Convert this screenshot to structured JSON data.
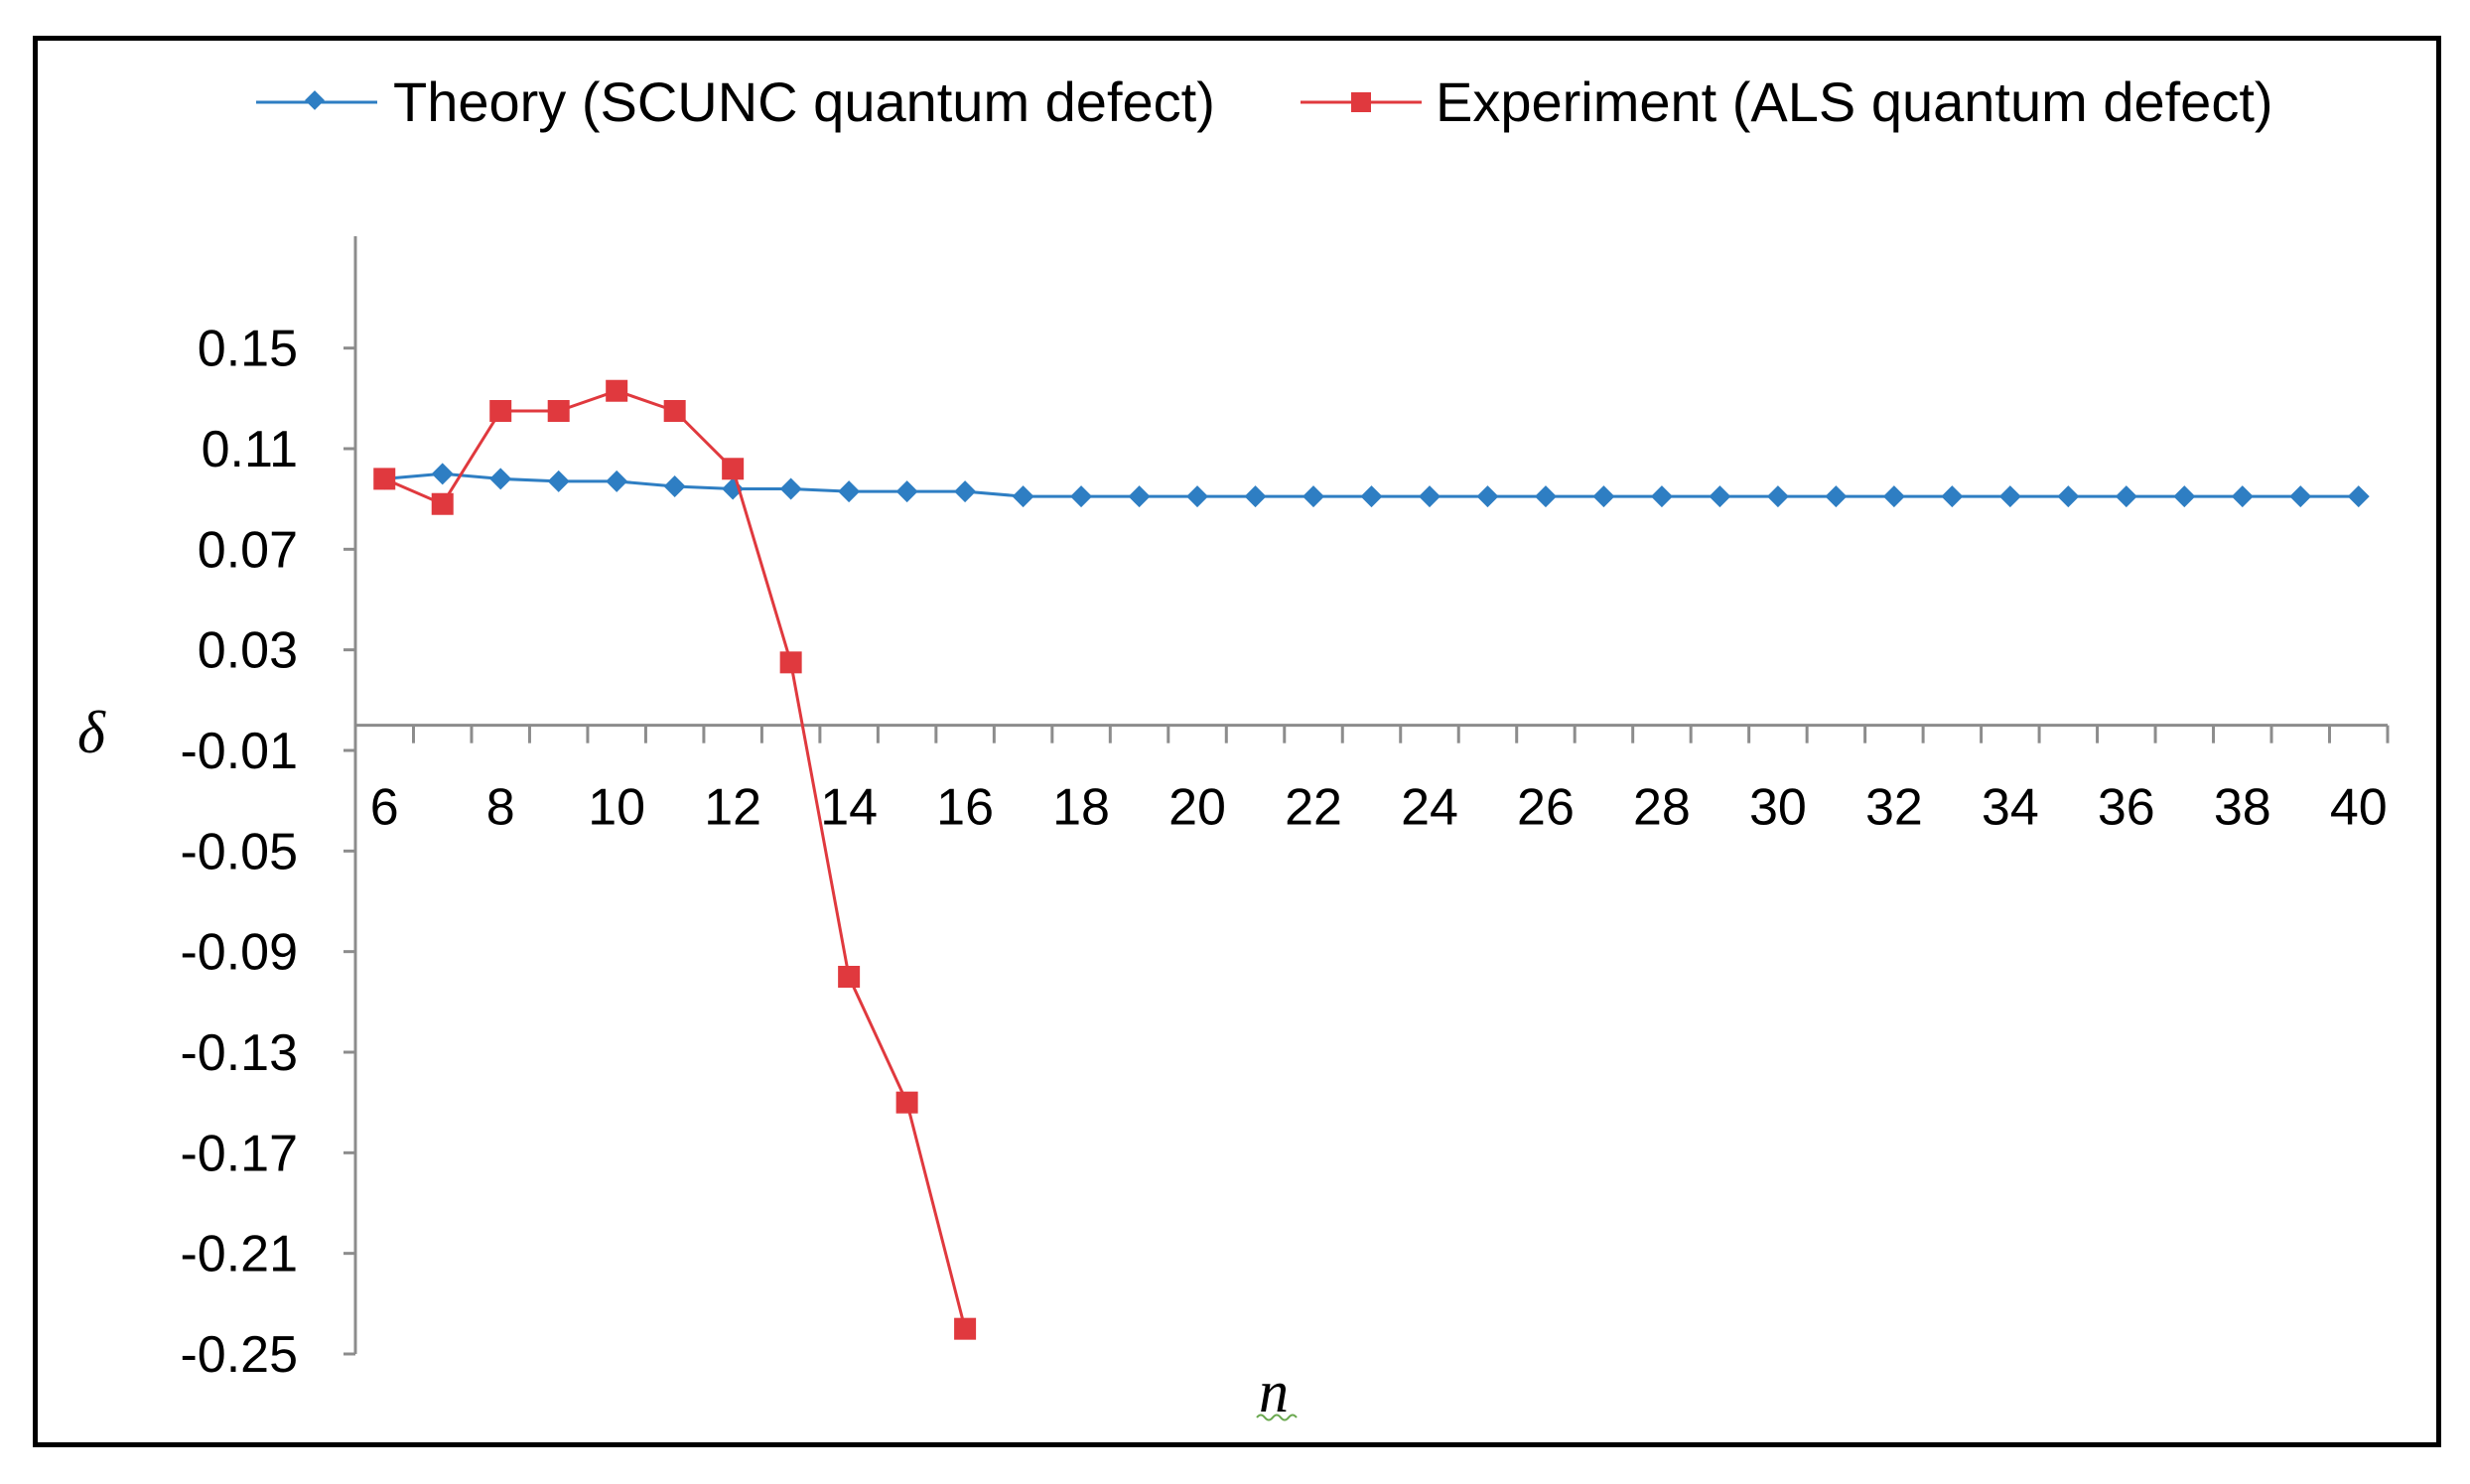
{
  "chart_data": {
    "type": "line",
    "title": "",
    "xlabel": "n",
    "ylabel": "δ",
    "x": [
      6,
      7,
      8,
      9,
      10,
      11,
      12,
      13,
      14,
      15,
      16,
      17,
      18,
      19,
      20,
      21,
      22,
      23,
      24,
      25,
      26,
      27,
      28,
      29,
      30,
      31,
      32,
      33,
      34,
      35,
      36,
      37,
      38,
      39,
      40
    ],
    "xticks": [
      6,
      8,
      10,
      12,
      14,
      16,
      18,
      20,
      22,
      24,
      26,
      28,
      30,
      32,
      34,
      36,
      38,
      40
    ],
    "xlim": [
      5.5,
      40.5
    ],
    "ylim": [
      -0.25,
      0.185
    ],
    "yticks": [
      0.15,
      0.11,
      0.07,
      0.03,
      -0.01,
      -0.05,
      -0.09,
      -0.13,
      -0.17,
      -0.21,
      -0.25
    ],
    "ytick_labels": [
      "0.15",
      "0.11",
      "0.07",
      "0.03",
      "-0.01",
      "-0.05",
      "-0.09",
      "-0.13",
      "-0.17",
      "-0.21",
      "-0.25"
    ],
    "x_axis_at": 0,
    "legend_position": "top",
    "grid": false,
    "series": [
      {
        "name": "Theory (SCUNC quantum defect)",
        "color": "#2e7ec3",
        "marker": "diamond",
        "x": [
          6,
          7,
          8,
          9,
          10,
          11,
          12,
          13,
          14,
          15,
          16,
          17,
          18,
          19,
          20,
          21,
          22,
          23,
          24,
          25,
          26,
          27,
          28,
          29,
          30,
          31,
          32,
          33,
          34,
          35,
          36,
          37,
          38,
          39,
          40
        ],
        "values": [
          0.098,
          0.1,
          0.098,
          0.097,
          0.097,
          0.095,
          0.094,
          0.094,
          0.093,
          0.093,
          0.093,
          0.091,
          0.091,
          0.091,
          0.091,
          0.091,
          0.091,
          0.091,
          0.091,
          0.091,
          0.091,
          0.091,
          0.091,
          0.091,
          0.091,
          0.091,
          0.091,
          0.091,
          0.091,
          0.091,
          0.091,
          0.091,
          0.091,
          0.091,
          0.091
        ]
      },
      {
        "name": "Experiment (ALS quantum defect)",
        "color": "#e0393e",
        "marker": "square",
        "x": [
          6,
          7,
          8,
          9,
          10,
          11,
          12,
          13,
          14,
          15,
          16
        ],
        "values": [
          0.098,
          0.088,
          0.125,
          0.125,
          0.133,
          0.125,
          0.102,
          0.025,
          -0.1,
          -0.15,
          -0.24
        ]
      }
    ]
  }
}
